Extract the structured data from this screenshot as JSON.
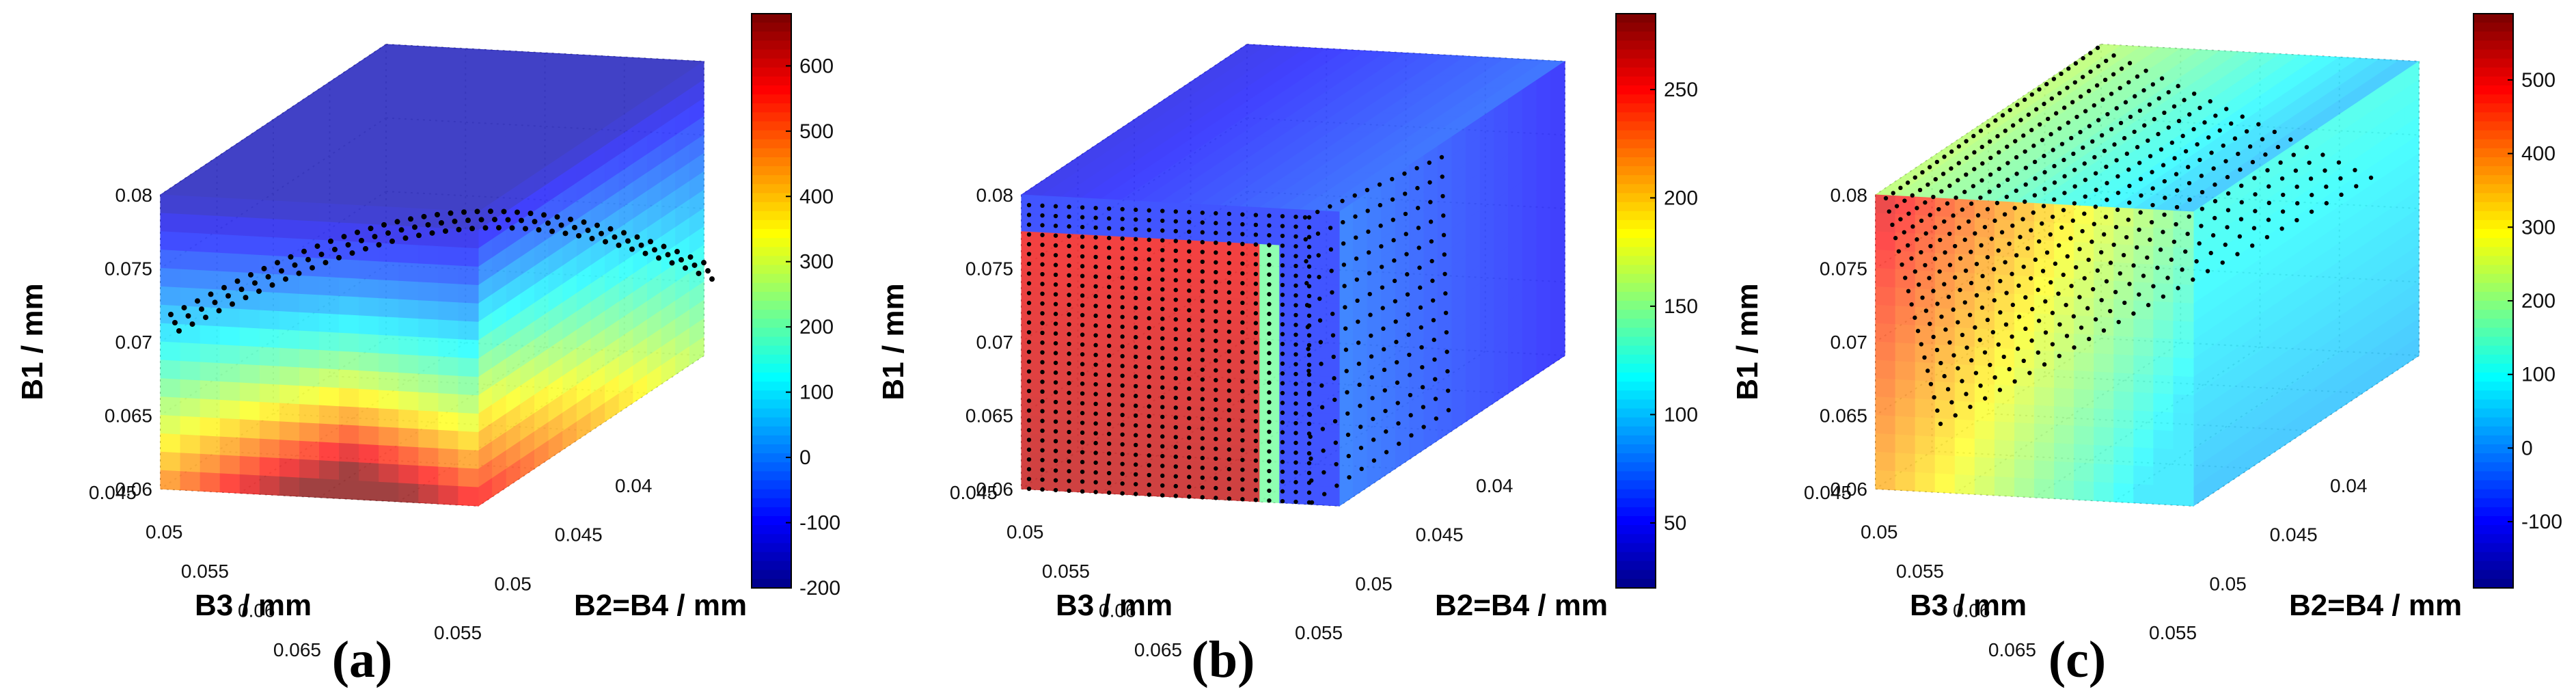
{
  "figure": {
    "panels": [
      {
        "id": "a",
        "caption": "(a)",
        "axes": {
          "z_label": "B1 / mm",
          "x_label": "B3 / mm",
          "y_label": "B2=B4 / mm",
          "z_ticks": [
            "0.08",
            "0.075",
            "0.07",
            "0.065",
            "0.06"
          ],
          "x_ticks": [
            "0.045",
            "0.05",
            "0.055",
            "0.06",
            "0.065"
          ],
          "y_ticks": [
            "0.04",
            "0.045",
            "0.05",
            "0.055"
          ]
        },
        "colorbar": {
          "min": -200,
          "max": 680,
          "ticks": [
            "600",
            "500",
            "400",
            "300",
            "200",
            "100",
            "0",
            "-100",
            "-200"
          ]
        }
      },
      {
        "id": "b",
        "caption": "(b)",
        "axes": {
          "z_label": "B1 / mm",
          "x_label": "B3 / mm",
          "y_label": "B2=B4 / mm",
          "z_ticks": [
            "0.08",
            "0.075",
            "0.07",
            "0.065",
            "0.06"
          ],
          "x_ticks": [
            "0.045",
            "0.05",
            "0.055",
            "0.06",
            "0.065"
          ],
          "y_ticks": [
            "0.04",
            "0.045",
            "0.05",
            "0.055"
          ]
        },
        "colorbar": {
          "min": 20,
          "max": 285,
          "ticks": [
            "250",
            "200",
            "150",
            "100",
            "50"
          ]
        }
      },
      {
        "id": "c",
        "caption": "(c)",
        "axes": {
          "z_label": "B1 / mm",
          "x_label": "B3 / mm",
          "y_label": "B2=B4 / mm",
          "z_ticks": [
            "0.08",
            "0.075",
            "0.07",
            "0.065",
            "0.06"
          ],
          "x_ticks": [
            "0.045",
            "0.05",
            "0.055",
            "0.06",
            "0.065"
          ],
          "y_ticks": [
            "0.04",
            "0.045",
            "0.05",
            "0.055"
          ]
        },
        "colorbar": {
          "min": -190,
          "max": 590,
          "ticks": [
            "500",
            "400",
            "300",
            "200",
            "100",
            "0",
            "-100"
          ]
        }
      }
    ]
  },
  "chart_data": [
    {
      "type": "heatmap",
      "subtype": "3d-volumetric-slice",
      "title": "(a)",
      "xlabel": "B3 / mm",
      "ylabel": "B2=B4 / mm",
      "zlabel": "B1 / mm",
      "xlim": [
        0.045,
        0.065
      ],
      "ylim": [
        0.055,
        0.04
      ],
      "zlim": [
        0.06,
        0.08
      ],
      "colorbar": {
        "min": -200,
        "max": 680,
        "ticks": [
          600,
          500,
          400,
          300,
          200,
          100,
          0,
          -100,
          -200
        ]
      },
      "description_values": {
        "top_region": -150,
        "middle_band": 150,
        "bottom_front_corner": 650
      },
      "marker_surface": "dotted arc near B1 = 0.075"
    },
    {
      "type": "heatmap",
      "subtype": "3d-volumetric-slice",
      "title": "(b)",
      "xlabel": "B3 / mm",
      "ylabel": "B2=B4 / mm",
      "zlabel": "B1 / mm",
      "xlim": [
        0.045,
        0.065
      ],
      "ylim": [
        0.055,
        0.04
      ],
      "zlim": [
        0.06,
        0.08
      ],
      "colorbar": {
        "min": 20,
        "max": 285,
        "ticks": [
          250,
          200,
          150,
          100,
          50
        ]
      },
      "description_values": {
        "front_block": 250,
        "right_side": 60,
        "top_back": 40
      },
      "marker_surface": "dense dotted block over front face"
    },
    {
      "type": "heatmap",
      "subtype": "3d-volumetric-slice",
      "title": "(c)",
      "xlabel": "B3 / mm",
      "ylabel": "B2=B4 / mm",
      "zlabel": "B1 / mm",
      "xlim": [
        0.045,
        0.065
      ],
      "ylim": [
        0.055,
        0.04
      ],
      "zlim": [
        0.06,
        0.08
      ],
      "colorbar": {
        "min": -190,
        "max": 590,
        "ticks": [
          500,
          400,
          300,
          200,
          100,
          0,
          -100
        ]
      },
      "description_values": {
        "front_top_left": 550,
        "center": 250,
        "lower_right": 80
      },
      "marker_surface": "dotted sloped plane across top"
    }
  ]
}
